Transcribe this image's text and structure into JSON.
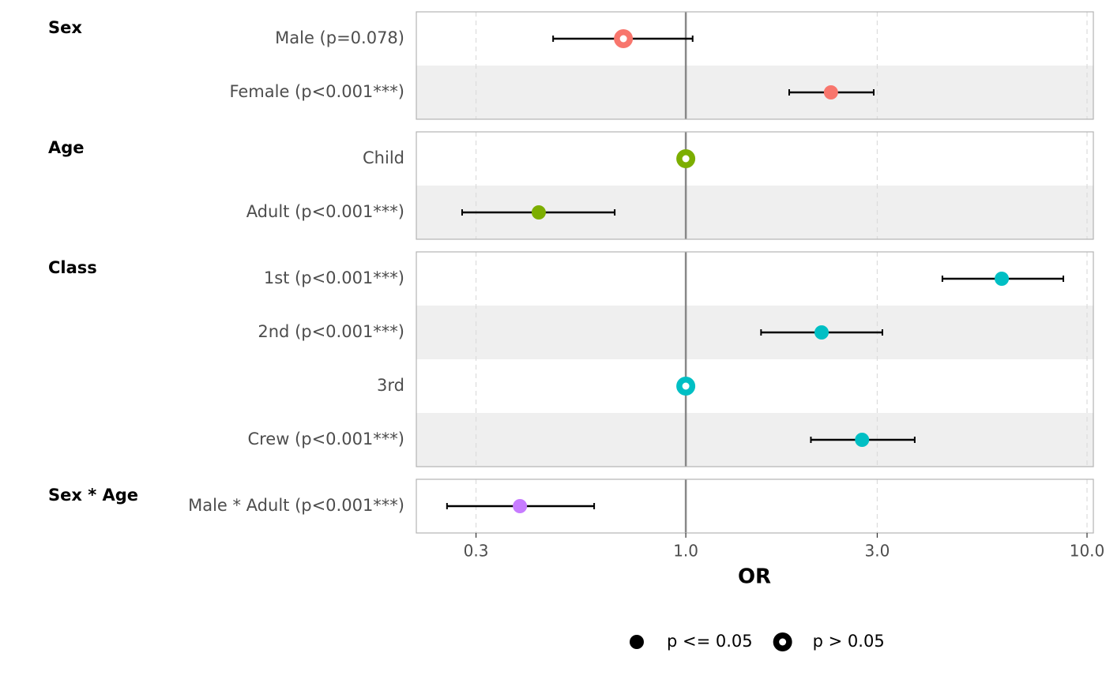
{
  "chart_data": {
    "type": "forest",
    "x_label": "OR",
    "xscale": "log",
    "xlim": [
      0.213,
      10.37
    ],
    "xticks": [
      0.3,
      {
        "value": 1,
        "label": "1.0"
      },
      {
        "value": 3,
        "label": "3.0"
      },
      {
        "value": 10,
        "label": "10.0"
      }
    ],
    "reference": 1,
    "grid": true,
    "groups": [
      {
        "name": "Sex",
        "color": "#f8766d",
        "rows": [
          {
            "label": "Male (p=0.078)",
            "or": 0.699,
            "lo": 0.467,
            "hi": 1.04,
            "significant": false
          },
          {
            "label": "Female (p<0.001***)",
            "or": 2.3,
            "lo": 1.81,
            "hi": 2.94,
            "significant": true
          }
        ]
      },
      {
        "name": "Age",
        "color": "#7cae00",
        "rows": [
          {
            "label": "Child",
            "or": 1,
            "lo": null,
            "hi": null,
            "significant": false
          },
          {
            "label": "Adult (p<0.001***)",
            "or": 0.43,
            "lo": 0.277,
            "hi": 0.665,
            "significant": true
          }
        ]
      },
      {
        "name": "Class",
        "color": "#00bfc4",
        "rows": [
          {
            "label": "1st (p<0.001***)",
            "or": 6.13,
            "lo": 4.36,
            "hi": 8.73,
            "significant": true
          },
          {
            "label": "2nd (p<0.001***)",
            "or": 2.18,
            "lo": 1.54,
            "hi": 3.09,
            "significant": true
          },
          {
            "label": "3rd",
            "or": 1,
            "lo": null,
            "hi": null,
            "significant": false
          },
          {
            "label": "Crew (p<0.001***)",
            "or": 2.75,
            "lo": 2.05,
            "hi": 3.72,
            "significant": true
          }
        ]
      },
      {
        "name": "Sex * Age",
        "color": "#c77cff",
        "rows": [
          {
            "label": "Male * Adult (p<0.001***)",
            "or": 0.386,
            "lo": 0.254,
            "hi": 0.591,
            "significant": true
          }
        ]
      }
    ],
    "legend": [
      {
        "label": "p <= 0.05",
        "filled": true
      },
      {
        "label": "p > 0.05",
        "filled": false
      }
    ]
  }
}
